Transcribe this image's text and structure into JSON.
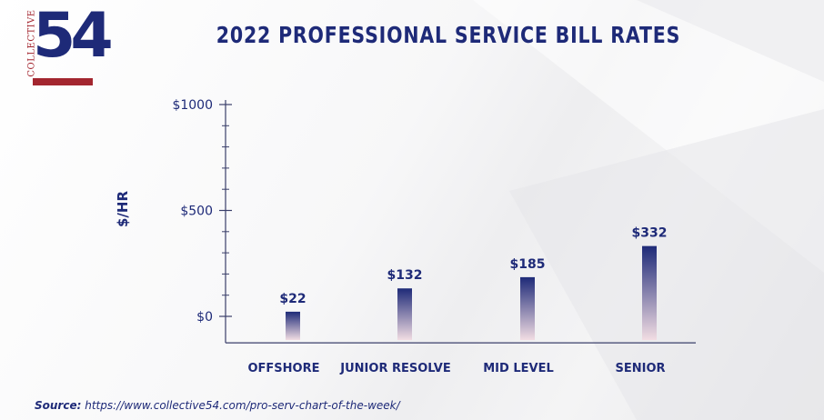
{
  "brand": {
    "side_text": "COLLECTIVE",
    "number": "54"
  },
  "source": {
    "label": "Source:",
    "url": "https://www.collective54.com/pro-serv-chart-of-the-week/"
  },
  "colors": {
    "navy": "#1e2a78",
    "red": "#a3262f",
    "bar_top": "#1e2a78",
    "bar_bottom": "#f2dde3"
  },
  "chart_data": {
    "type": "bar",
    "title": "2022 PROFESSIONAL SERVICE BILL RATES",
    "ylabel": "$/HR",
    "xlabel": "",
    "categories": [
      "OFFSHORE",
      "JUNIOR RESOLVE",
      "MID LEVEL",
      "SENIOR"
    ],
    "values": [
      22,
      132,
      185,
      332
    ],
    "value_labels": [
      "$22",
      "$132",
      "$185",
      "$332"
    ],
    "yticks": [
      0,
      500,
      1000
    ],
    "ytick_labels": [
      "$0",
      "$500",
      "$1000"
    ],
    "minor_tick_step": 100,
    "ylim": [
      -125,
      1000
    ],
    "grid": false,
    "legend": "none"
  }
}
